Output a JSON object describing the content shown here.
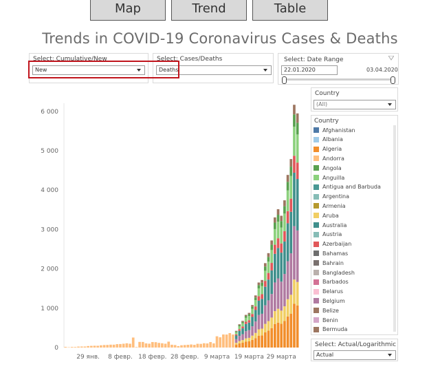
{
  "nav": {
    "map_label": "Map",
    "trend_label": "Trend",
    "table_label": "Table"
  },
  "title": "Trends in COVID-19 Coronavirus Cases & Deaths",
  "filters": {
    "cumulative": {
      "label": "Select: Cumulative/New",
      "value": "New"
    },
    "cases_deaths": {
      "label": "Select: Cases/Deaths",
      "value": "Deaths"
    },
    "date_range": {
      "label": "Select: Date Range",
      "start": "22.01.2020",
      "end": "03.04.2020"
    },
    "country_filter": {
      "label": "Country",
      "value": "(All)"
    },
    "scale": {
      "label": "Select: Actual/Logarithmic",
      "value": "Actual"
    }
  },
  "legend": {
    "title": "Country",
    "items": [
      {
        "name": "Afghanistan",
        "color": "#4e79a7"
      },
      {
        "name": "Albania",
        "color": "#a0cbe8"
      },
      {
        "name": "Algeria",
        "color": "#f28e2b"
      },
      {
        "name": "Andorra",
        "color": "#ffbe7d"
      },
      {
        "name": "Angola",
        "color": "#59a14f"
      },
      {
        "name": "Anguilla",
        "color": "#8cd17d"
      },
      {
        "name": "Antigua and Barbuda",
        "color": "#499894"
      },
      {
        "name": "Argentina",
        "color": "#86bcb6"
      },
      {
        "name": "Armenia",
        "color": "#b6992d"
      },
      {
        "name": "Aruba",
        "color": "#f1ce63"
      },
      {
        "name": "Australia",
        "color": "#3f8f8c"
      },
      {
        "name": "Austria",
        "color": "#86bcb6"
      },
      {
        "name": "Azerbaijan",
        "color": "#e15759"
      },
      {
        "name": "Bahamas",
        "color": "#6d6d6d"
      },
      {
        "name": "Bahrain",
        "color": "#79706e"
      },
      {
        "name": "Bangladesh",
        "color": "#bab0ac"
      },
      {
        "name": "Barbados",
        "color": "#d37295"
      },
      {
        "name": "Belarus",
        "color": "#fabfd2"
      },
      {
        "name": "Belgium",
        "color": "#b07aa1"
      },
      {
        "name": "Belize",
        "color": "#9d7660"
      },
      {
        "name": "Benin",
        "color": "#d4a6c8"
      },
      {
        "name": "Bermuda",
        "color": "#9d7660"
      }
    ]
  },
  "chart_data": {
    "type": "bar",
    "stacked": true,
    "title": "",
    "xlabel": "",
    "ylabel": "",
    "ylim": [
      0,
      6200
    ],
    "y_ticks": [
      "0",
      "1 000",
      "2 000",
      "3 000",
      "4 000",
      "5 000",
      "6 000"
    ],
    "x_tick_labels": [
      "29 янв.",
      "8 февр.",
      "18 февр.",
      "28 февр.",
      "9 марта",
      "19 марта",
      "29 марта"
    ],
    "x": [
      "22.01",
      "23.01",
      "24.01",
      "25.01",
      "26.01",
      "27.01",
      "28.01",
      "29.01",
      "30.01",
      "31.01",
      "01.02",
      "02.02",
      "03.02",
      "04.02",
      "05.02",
      "06.02",
      "07.02",
      "08.02",
      "09.02",
      "10.02",
      "11.02",
      "12.02",
      "13.02",
      "14.02",
      "15.02",
      "16.02",
      "17.02",
      "18.02",
      "19.02",
      "20.02",
      "21.02",
      "22.02",
      "23.02",
      "24.02",
      "25.02",
      "26.02",
      "27.02",
      "28.02",
      "29.02",
      "01.03",
      "02.03",
      "03.03",
      "04.03",
      "05.03",
      "06.03",
      "07.03",
      "08.03",
      "09.03",
      "10.03",
      "11.03",
      "12.03",
      "13.03",
      "14.03",
      "15.03",
      "16.03",
      "17.03",
      "18.03",
      "19.03",
      "20.03",
      "21.03",
      "22.03",
      "23.03",
      "24.03",
      "25.03",
      "26.03",
      "27.03",
      "28.03",
      "29.03",
      "30.03",
      "31.03",
      "01.04",
      "02.04",
      "03.04"
    ],
    "totals": [
      17,
      8,
      16,
      15,
      24,
      26,
      26,
      38,
      43,
      46,
      45,
      57,
      64,
      66,
      73,
      73,
      86,
      89,
      97,
      108,
      97,
      254,
      13,
      143,
      142,
      106,
      98,
      139,
      136,
      118,
      109,
      97,
      150,
      71,
      64,
      37,
      58,
      64,
      70,
      78,
      69,
      95,
      93,
      109,
      104,
      139,
      106,
      286,
      260,
      332,
      330,
      367,
      330,
      425,
      591,
      678,
      830,
      881,
      1080,
      1324,
      1652,
      1716,
      2144,
      2398,
      2721,
      3306,
      3514,
      3348,
      3740,
      4385,
      4788,
      6167,
      5948
    ],
    "series_colors": [
      "#f28e2b",
      "#f1ce63",
      "#b07aa1",
      "#3f8f8c",
      "#e15759",
      "#8cd17d",
      "#59a14f",
      "#9d7660"
    ]
  }
}
